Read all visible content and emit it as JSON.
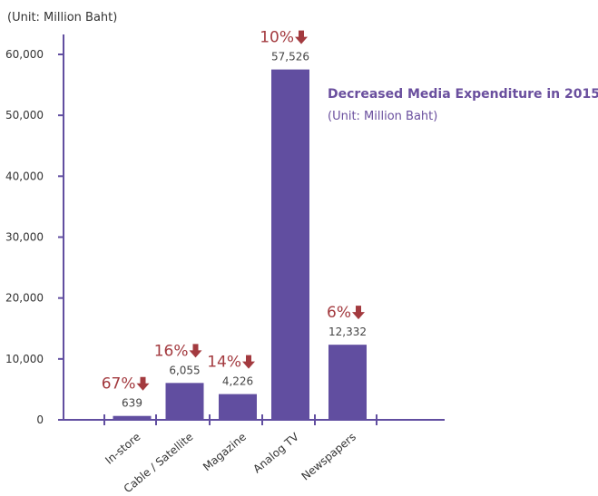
{
  "unit_label": "(Unit: Million Baht)",
  "legend": {
    "title": "Decreased Media Expenditure in 2015",
    "unit": "(Unit: Million Baht)"
  },
  "colors": {
    "bar": "#614ea0",
    "axis": "#614ea0",
    "decrease": "#a33a3f",
    "value_text": "#444444",
    "legend_text": "#6a4f9e"
  },
  "chart_data": {
    "type": "bar",
    "title": "Decreased Media Expenditure in 2015",
    "ylabel": "(Unit: Million Baht)",
    "xlabel": "",
    "ylim": [
      0,
      60000
    ],
    "yticks": [
      0,
      10000,
      20000,
      30000,
      40000,
      50000,
      60000
    ],
    "ytick_labels": [
      "0",
      "10,000",
      "20,000",
      "30,000",
      "40,000",
      "50,000",
      "60,000"
    ],
    "categories": [
      "In-store",
      "Cable / Satellite",
      "Magazine",
      "Analog TV",
      "Newspapers"
    ],
    "values": [
      639,
      6055,
      4226,
      57526,
      12332
    ],
    "value_labels": [
      "639",
      "6,055",
      "4,226",
      "57,526",
      "12,332"
    ],
    "change_labels": [
      "67%",
      "16%",
      "14%",
      "10%",
      "6%"
    ],
    "change_direction": "down",
    "grid": false
  }
}
